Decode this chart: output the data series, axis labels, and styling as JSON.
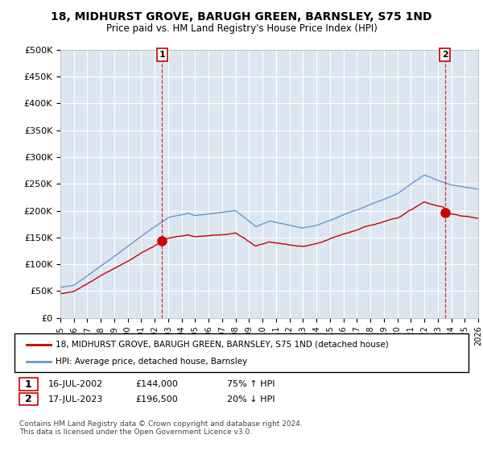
{
  "title": "18, MIDHURST GROVE, BARUGH GREEN, BARNSLEY, S75 1ND",
  "subtitle": "Price paid vs. HM Land Registry's House Price Index (HPI)",
  "ylim": [
    0,
    500000
  ],
  "yticks": [
    0,
    50000,
    100000,
    150000,
    200000,
    250000,
    300000,
    350000,
    400000,
    450000,
    500000
  ],
  "ytick_labels": [
    "£0",
    "£50K",
    "£100K",
    "£150K",
    "£200K",
    "£250K",
    "£300K",
    "£350K",
    "£400K",
    "£450K",
    "£500K"
  ],
  "x_start_year": 1995,
  "x_end_year": 2026,
  "sale1_date": 2002.54,
  "sale1_price": 144000,
  "sale1_label": "1",
  "sale1_date_str": "16-JUL-2002",
  "sale1_price_str": "£144,000",
  "sale1_hpi_str": "75% ↑ HPI",
  "sale2_date": 2023.54,
  "sale2_price": 196500,
  "sale2_label": "2",
  "sale2_date_str": "17-JUL-2023",
  "sale2_price_str": "£196,500",
  "sale2_hpi_str": "20% ↓ HPI",
  "red_line_color": "#cc0000",
  "blue_line_color": "#6699cc",
  "plot_bg_color": "#dce6f1",
  "grid_color": "#ffffff",
  "fig_bg_color": "#ffffff",
  "legend_label_red": "18, MIDHURST GROVE, BARUGH GREEN, BARNSLEY, S75 1ND (detached house)",
  "legend_label_blue": "HPI: Average price, detached house, Barnsley",
  "footer_text": "Contains HM Land Registry data © Crown copyright and database right 2024.\nThis data is licensed under the Open Government Licence v3.0."
}
